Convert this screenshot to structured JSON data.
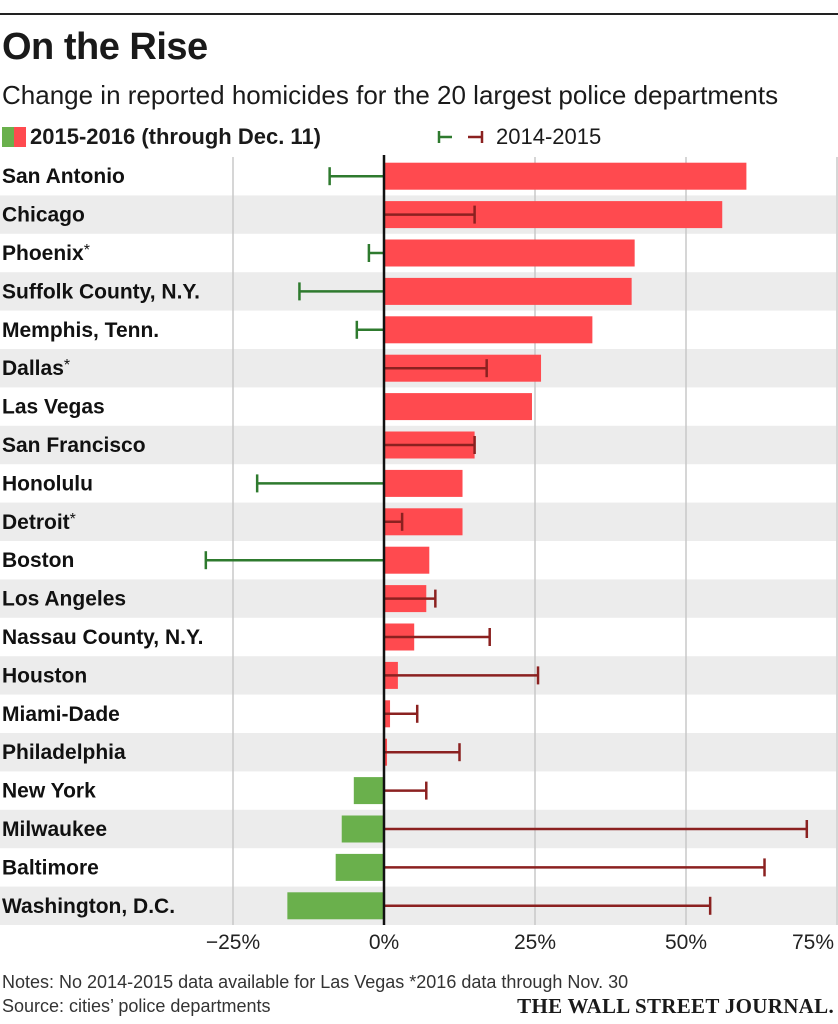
{
  "title": "On the Rise",
  "subtitle": "Change in reported homicides for the 20 largest police departments",
  "legend": {
    "bars_label": "2015-2016 (through Dec. 11)",
    "range_label": "2014-2015"
  },
  "notes": "Notes: No 2014-2015 data available for Las Vegas    *2016 data through Nov. 30",
  "source": "Source: cities’ police departments",
  "publisher": "THE WALL STREET JOURNAL.",
  "colors": {
    "increase": "#ff4a4f",
    "decrease": "#6ab04c",
    "range_increase": "#8b2120",
    "range_decrease": "#2e7a2e",
    "row_shade": "#ececec",
    "grid": "#c8c8c8"
  },
  "chart_data": {
    "type": "bar",
    "orientation": "horizontal",
    "xlim": [
      -38,
      75
    ],
    "x_ticks": [
      -25,
      0,
      25,
      50,
      75
    ],
    "x_tick_labels": [
      "−25%",
      "0%",
      "25%",
      "50%",
      "75%"
    ],
    "grid": true,
    "categories": [
      "San Antonio",
      "Chicago",
      "Phoenix",
      "Suffolk County, N.Y.",
      "Memphis, Tenn.",
      "Dallas",
      "Las Vegas",
      "San Francisco",
      "Honolulu",
      "Detroit",
      "Boston",
      "Los Angeles",
      "Nassau County, N.Y.",
      "Houston",
      "Miami-Dade",
      "Philadelphia",
      "New York",
      "Milwaukee",
      "Baltimore",
      "Washington, D.C."
    ],
    "asterisk": [
      false,
      false,
      true,
      false,
      false,
      true,
      false,
      false,
      false,
      true,
      false,
      false,
      false,
      false,
      false,
      false,
      false,
      false,
      false,
      false
    ],
    "series": [
      {
        "name": "2015-2016 (through Dec. 11)",
        "values": [
          60,
          56,
          41.5,
          41,
          34.5,
          26,
          24.5,
          15,
          13,
          13,
          7.5,
          7,
          5,
          2.3,
          1,
          0.5,
          -5,
          -7,
          -8,
          -16
        ]
      },
      {
        "name": "2014-2015",
        "values": [
          -9,
          15,
          -2.5,
          -14,
          -4.5,
          17,
          null,
          15,
          -21,
          3,
          -29.5,
          8.5,
          17.5,
          25.5,
          5.5,
          12.5,
          7,
          70,
          63,
          54
        ]
      }
    ]
  }
}
